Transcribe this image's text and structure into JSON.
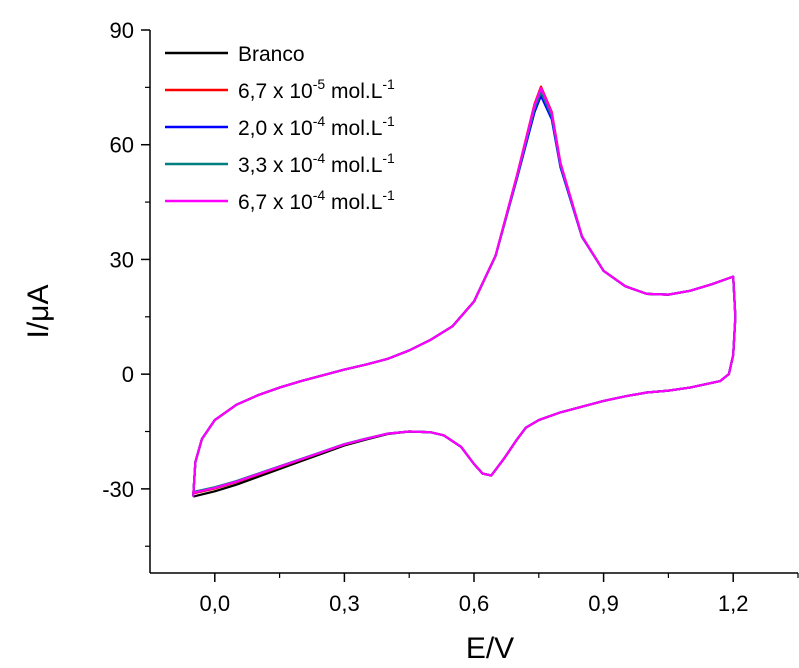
{
  "chart_data": {
    "type": "line",
    "xlabel": "E/V",
    "ylabel": "I/μA",
    "xlim": [
      -0.15,
      1.35
    ],
    "ylim": [
      -52,
      90
    ],
    "x_ticks": [
      0.0,
      0.3,
      0.6,
      0.9,
      1.2
    ],
    "x_tick_labels": [
      "0,0",
      "0,3",
      "0,6",
      "0,9",
      "1,2"
    ],
    "y_ticks": [
      -30,
      0,
      30,
      60,
      90
    ],
    "y_tick_labels": [
      "-30",
      "0",
      "30",
      "60",
      "90"
    ],
    "grid": false,
    "legend_position": "top-left",
    "base_curve": {
      "forward": [
        [
          -0.05,
          -32
        ],
        [
          -0.045,
          -23
        ],
        [
          -0.03,
          -17
        ],
        [
          0.0,
          -12
        ],
        [
          0.05,
          -8
        ],
        [
          0.1,
          -5.5
        ],
        [
          0.15,
          -3.5
        ],
        [
          0.2,
          -1.8
        ],
        [
          0.25,
          -0.3
        ],
        [
          0.3,
          1.2
        ],
        [
          0.35,
          2.5
        ],
        [
          0.4,
          4.0
        ],
        [
          0.45,
          6.2
        ],
        [
          0.5,
          9.0
        ],
        [
          0.55,
          12.5
        ],
        [
          0.6,
          19.0
        ],
        [
          0.65,
          31.0
        ],
        [
          0.7,
          52.0
        ],
        [
          0.74,
          70.0
        ],
        [
          0.755,
          74.5
        ],
        [
          0.78,
          68.0
        ],
        [
          0.8,
          55.0
        ],
        [
          0.85,
          36.0
        ],
        [
          0.9,
          27.0
        ],
        [
          0.95,
          23.0
        ],
        [
          1.0,
          21.0
        ],
        [
          1.05,
          20.8
        ],
        [
          1.1,
          21.8
        ],
        [
          1.15,
          23.5
        ],
        [
          1.2,
          25.5
        ]
      ],
      "reverse": [
        [
          1.2,
          25.5
        ],
        [
          1.205,
          15.0
        ],
        [
          1.2,
          5.0
        ],
        [
          1.19,
          0.0
        ],
        [
          1.17,
          -1.8
        ],
        [
          1.1,
          -3.5
        ],
        [
          1.05,
          -4.3
        ],
        [
          1.0,
          -4.8
        ],
        [
          0.95,
          -5.8
        ],
        [
          0.9,
          -7.0
        ],
        [
          0.85,
          -8.5
        ],
        [
          0.8,
          -10.0
        ],
        [
          0.75,
          -12.0
        ],
        [
          0.72,
          -14.0
        ],
        [
          0.7,
          -17.0
        ],
        [
          0.67,
          -22.0
        ],
        [
          0.64,
          -26.5
        ],
        [
          0.62,
          -26.0
        ],
        [
          0.6,
          -23.5
        ],
        [
          0.57,
          -19.0
        ],
        [
          0.53,
          -16.0
        ],
        [
          0.5,
          -15.2
        ],
        [
          0.45,
          -15.0
        ],
        [
          0.4,
          -15.6
        ],
        [
          0.35,
          -17.0
        ],
        [
          0.3,
          -18.5
        ],
        [
          0.25,
          -20.5
        ],
        [
          0.2,
          -22.5
        ],
        [
          0.15,
          -24.5
        ],
        [
          0.1,
          -26.5
        ],
        [
          0.05,
          -28.5
        ],
        [
          0.0,
          -30.2
        ],
        [
          -0.05,
          -31.5
        ]
      ]
    },
    "series": [
      {
        "name": "Branco",
        "color": "#000000",
        "peak_current": 74.3,
        "start_current": -32.0
      },
      {
        "name": "6,7 x 10<sup>-5</sup> mol.L<sup>-1</sup>",
        "color": "#ff0000",
        "peak_current": 75.2,
        "start_current": -31.2
      },
      {
        "name": "2,0 x 10<sup>-4</sup> mol.L<sup>-1</sup>",
        "color": "#0000ff",
        "peak_current": 72.8,
        "start_current": -31.0
      },
      {
        "name": "3,3 x 10<sup>-4</sup> mol.L<sup>-1</sup>",
        "color": "#008080",
        "peak_current": 73.8,
        "start_current": -30.8
      },
      {
        "name": "6,7 x 10<sup>-4</sup> mol.L<sup>-1</sup>",
        "color": "#ff00ff",
        "peak_current": 74.8,
        "start_current": -31.0
      }
    ],
    "legend_entries": [
      {
        "base": "Branco",
        "exp": "",
        "unit": "",
        "unit_exp": ""
      },
      {
        "base": "6,7 x 10",
        "exp": "-5",
        "unit": " mol.L",
        "unit_exp": "-1"
      },
      {
        "base": "2,0 x 10",
        "exp": "-4",
        "unit": " mol.L",
        "unit_exp": "-1"
      },
      {
        "base": "3,3 x 10",
        "exp": "-4",
        "unit": " mol.L",
        "unit_exp": "-1"
      },
      {
        "base": "6,7 x 10",
        "exp": "-4",
        "unit": " mol.L",
        "unit_exp": "-1"
      }
    ]
  }
}
